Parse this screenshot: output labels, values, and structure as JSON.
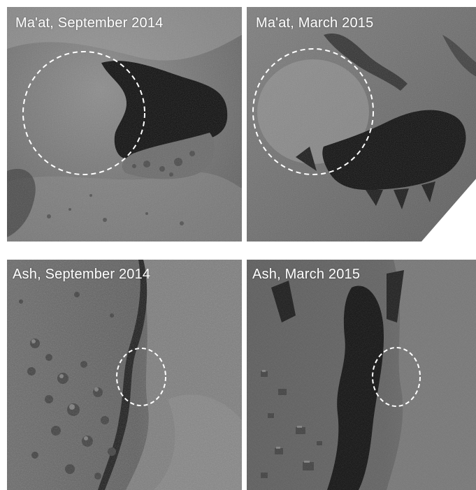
{
  "panels": [
    {
      "caption": "Ma'at, September 2014"
    },
    {
      "caption": "Ma'at, March 2015"
    },
    {
      "caption": "Ash, September 2014"
    },
    {
      "caption": "Ash, March 2015"
    }
  ],
  "colors": {
    "surface": "#7a7a7a",
    "shadow": "#0b0b0b",
    "highlight": "#a9a9a9",
    "marker": "#ffffff"
  }
}
